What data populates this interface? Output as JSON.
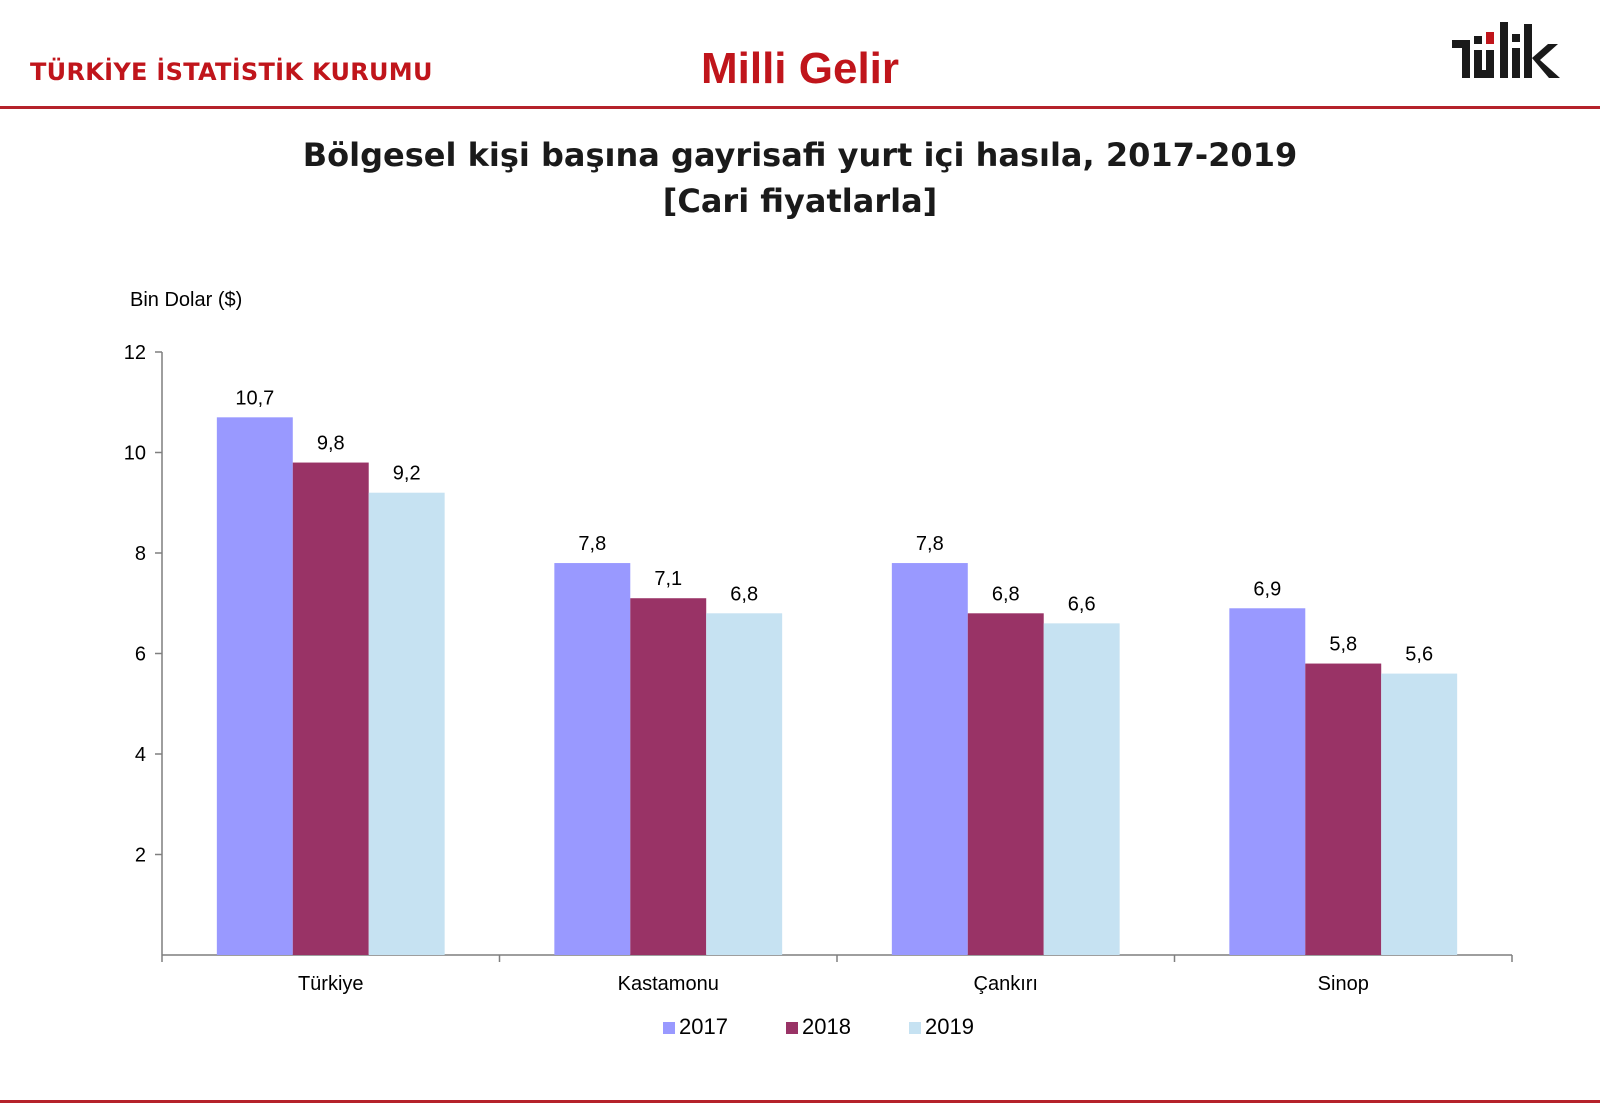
{
  "header": {
    "organization": "TÜRKİYE İSTATİSTİK KURUMU",
    "section": "Milli Gelir",
    "logo_text": "tüik",
    "colors": {
      "brand_red": "#c0151b",
      "rule": "#b5222a"
    }
  },
  "chart_data": {
    "type": "bar",
    "title": "Bölgesel kişi başına gayrisafi yurt içi hasıla, 2017-2019",
    "subtitle": "[Cari fiyatlarla]",
    "ylabel": "Bin Dolar ($)",
    "xlabel": "",
    "ylim": [
      0,
      12
    ],
    "yticks": [
      2,
      4,
      6,
      8,
      10,
      12
    ],
    "grid": false,
    "legend_position": "bottom",
    "categories": [
      "Türkiye",
      "Kastamonu",
      "Çankırı",
      "Sinop"
    ],
    "series": [
      {
        "name": "2017",
        "color": "#9999ff",
        "values": [
          10.7,
          7.8,
          7.8,
          6.9
        ],
        "labels": [
          "10,7",
          "7,8",
          "7,8",
          "6,9"
        ]
      },
      {
        "name": "2018",
        "color": "#993366",
        "values": [
          9.8,
          7.1,
          6.8,
          5.8
        ],
        "labels": [
          "9,8",
          "7,1",
          "6,8",
          "5,8"
        ]
      },
      {
        "name": "2019",
        "color": "#c6e2f2",
        "values": [
          9.2,
          6.8,
          6.6,
          5.6
        ],
        "labels": [
          "9,2",
          "6,8",
          "6,6",
          "5,6"
        ]
      }
    ]
  }
}
